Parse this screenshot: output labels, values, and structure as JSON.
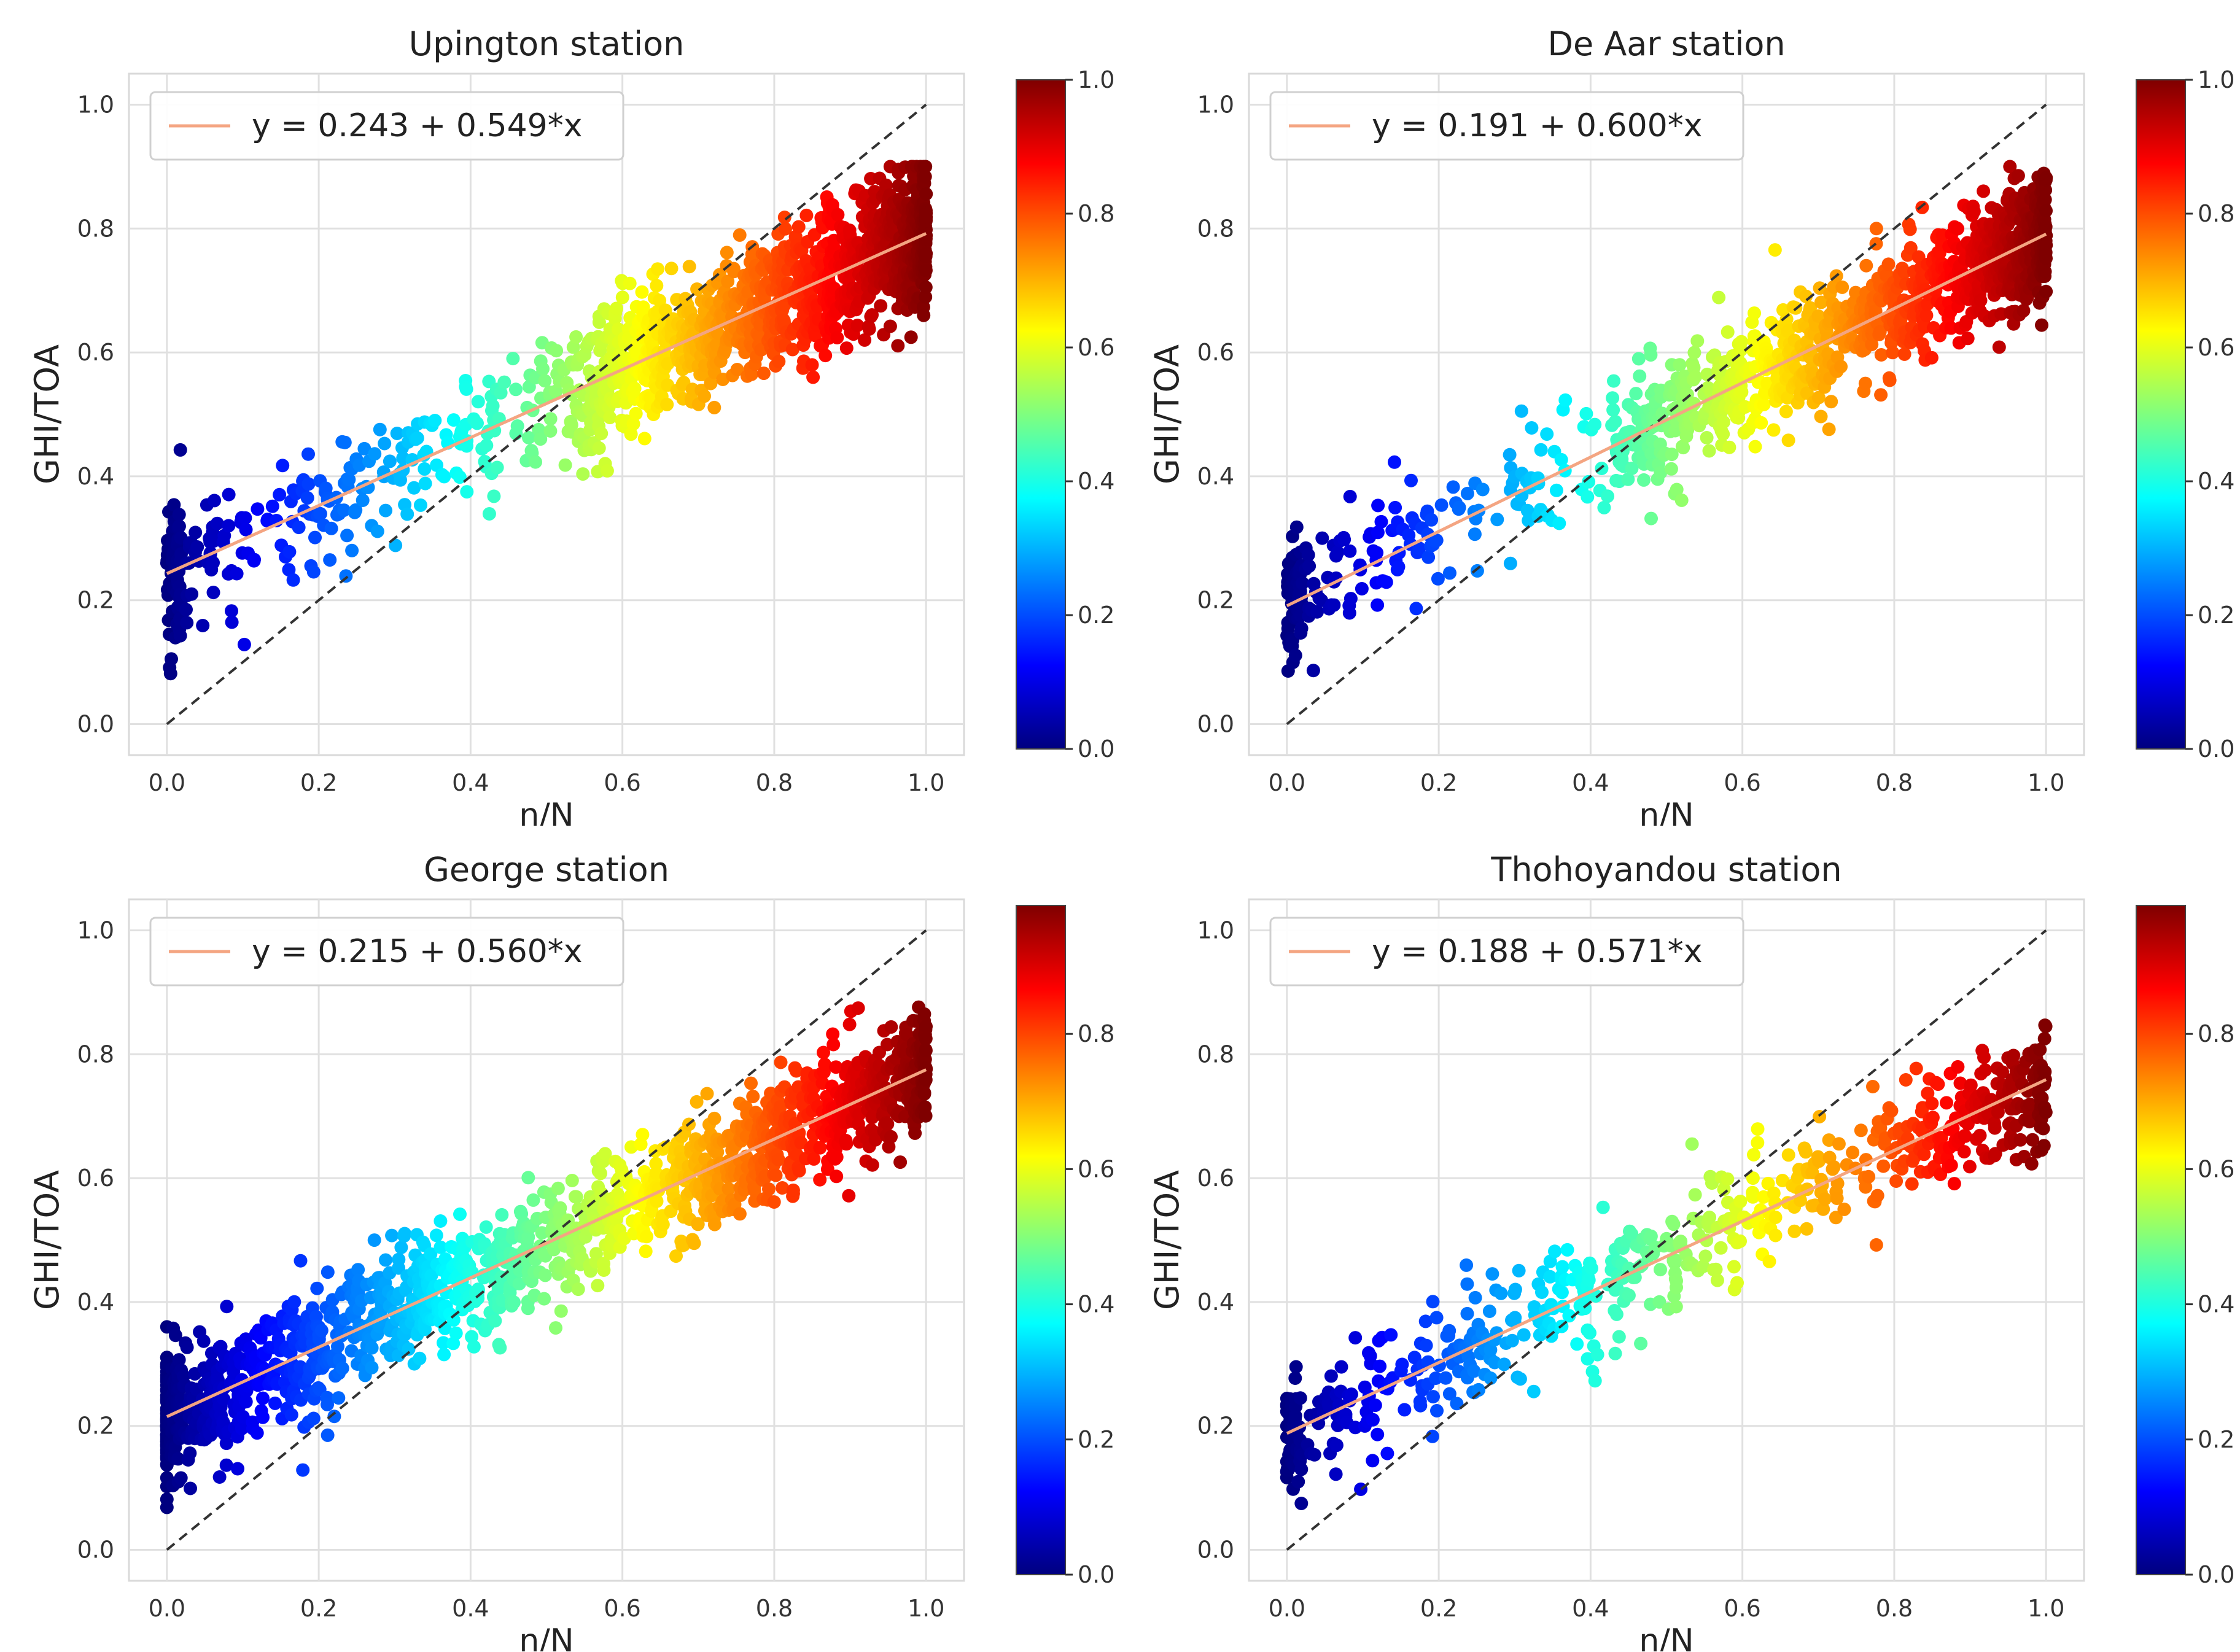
{
  "figure": {
    "description_panels": 4
  },
  "colorscale": {
    "name": "jet",
    "stops": [
      "#00007f",
      "#0000ff",
      "#007fff",
      "#00ffff",
      "#7fff7f",
      "#ffff00",
      "#ff7f00",
      "#ff0000",
      "#7f0000"
    ]
  },
  "colors": {
    "fit_line": "#f4a582",
    "identity_line": "#333333",
    "grid": "#e0e0e0",
    "axes_frame": "#d9d9d9"
  },
  "chart_data": [
    {
      "type": "scatter",
      "title": "Upington station",
      "xlabel": "n/N",
      "ylabel": "GHI/TOA",
      "xlim": [
        -0.05,
        1.05
      ],
      "ylim": [
        -0.05,
        1.05
      ],
      "xticks": [
        "0.0",
        "0.2",
        "0.4",
        "0.6",
        "0.8",
        "1.0"
      ],
      "yticks": [
        "0.0",
        "0.2",
        "0.4",
        "0.6",
        "0.8",
        "1.0"
      ],
      "legend": "y = 0.243 + 0.549*x",
      "legend_position": "upper-left",
      "fit": {
        "intercept": 0.243,
        "slope": 0.549
      },
      "identity_line": true,
      "colorbar": {
        "min": 0.0,
        "max": 1.0,
        "ticks": [
          "0.0",
          "0.2",
          "0.4",
          "0.6",
          "0.8",
          "1.0"
        ]
      },
      "scatter_model": {
        "n_points": 1400,
        "x_mean": 0.82,
        "x_bias": 0.4,
        "residual_sd": 0.055,
        "seed": 11
      }
    },
    {
      "type": "scatter",
      "title": "De Aar station",
      "xlabel": "n/N",
      "ylabel": "GHI/TOA",
      "xlim": [
        -0.05,
        1.05
      ],
      "ylim": [
        -0.05,
        1.05
      ],
      "xticks": [
        "0.0",
        "0.2",
        "0.4",
        "0.6",
        "0.8",
        "1.0"
      ],
      "yticks": [
        "0.0",
        "0.2",
        "0.4",
        "0.6",
        "0.8",
        "1.0"
      ],
      "legend": "y = 0.191 + 0.600*x",
      "legend_position": "upper-left",
      "fit": {
        "intercept": 0.191,
        "slope": 0.6
      },
      "identity_line": true,
      "colorbar": {
        "min": 0.0,
        "max": 1.0,
        "ticks": [
          "0.0",
          "0.2",
          "0.4",
          "0.6",
          "0.8",
          "1.0"
        ]
      },
      "scatter_model": {
        "n_points": 1200,
        "x_mean": 0.78,
        "x_bias": 0.45,
        "residual_sd": 0.05,
        "seed": 23
      }
    },
    {
      "type": "scatter",
      "title": "George station",
      "xlabel": "n/N",
      "ylabel": "GHI/TOA",
      "xlim": [
        -0.05,
        1.05
      ],
      "ylim": [
        -0.05,
        1.05
      ],
      "xticks": [
        "0.0",
        "0.2",
        "0.4",
        "0.6",
        "0.8",
        "1.0"
      ],
      "yticks": [
        "0.0",
        "0.2",
        "0.4",
        "0.6",
        "0.8",
        "1.0"
      ],
      "legend": "y = 0.215 + 0.560*x",
      "legend_position": "upper-left",
      "fit": {
        "intercept": 0.215,
        "slope": 0.56
      },
      "identity_line": true,
      "colorbar": {
        "min": 0.0,
        "max": 0.99,
        "ticks": [
          "0.0",
          "0.2",
          "0.4",
          "0.6",
          "0.8"
        ]
      },
      "scatter_model": {
        "n_points": 1600,
        "x_mean": 0.55,
        "x_bias": 0.0,
        "residual_sd": 0.05,
        "seed": 37
      }
    },
    {
      "type": "scatter",
      "title": "Thohoyandou station",
      "xlabel": "n/N",
      "ylabel": "GHI/TOA",
      "xlim": [
        -0.05,
        1.05
      ],
      "ylim": [
        -0.05,
        1.05
      ],
      "xticks": [
        "0.0",
        "0.2",
        "0.4",
        "0.6",
        "0.8",
        "1.0"
      ],
      "yticks": [
        "0.0",
        "0.2",
        "0.4",
        "0.6",
        "0.8",
        "1.0"
      ],
      "legend": "y = 0.188 + 0.571*x",
      "legend_position": "upper-left",
      "fit": {
        "intercept": 0.188,
        "slope": 0.571
      },
      "identity_line": true,
      "colorbar": {
        "min": 0.0,
        "max": 0.99,
        "ticks": [
          "0.0",
          "0.2",
          "0.4",
          "0.6",
          "0.8"
        ]
      },
      "scatter_model": {
        "n_points": 650,
        "x_mean": 0.6,
        "x_bias": 0.1,
        "residual_sd": 0.05,
        "seed": 53
      }
    }
  ]
}
